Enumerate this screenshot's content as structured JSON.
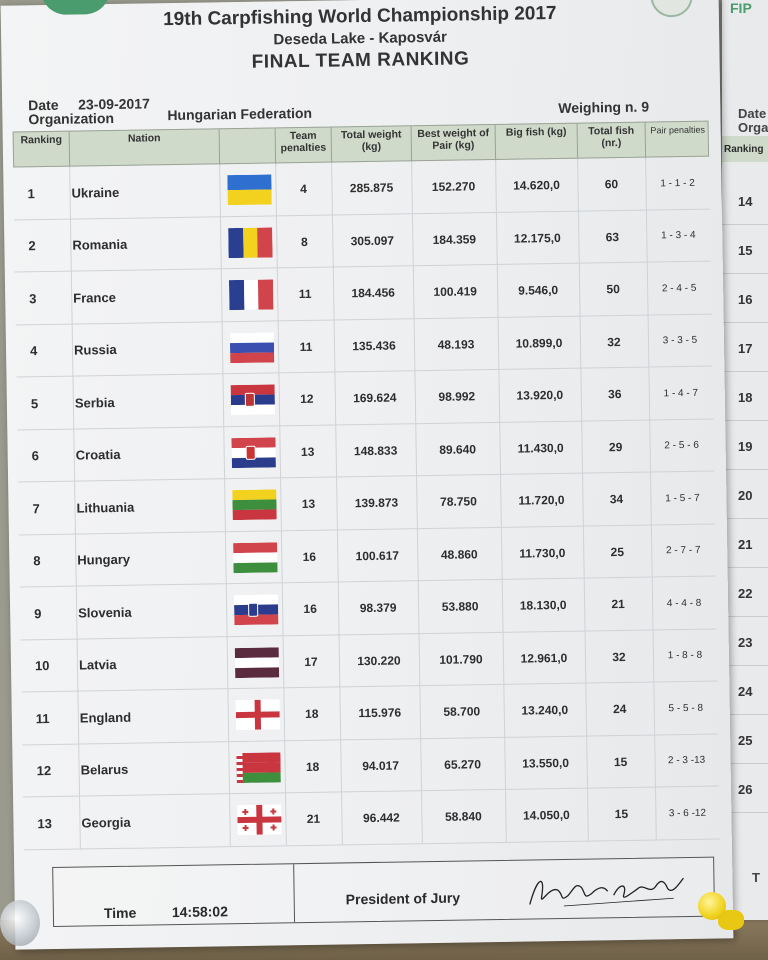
{
  "header": {
    "title": "19th Carpfishing World Championship 2017",
    "venue": "Deseda Lake - Kaposvár",
    "subtitle": "FINAL TEAM RANKING"
  },
  "meta": {
    "date_label": "Date",
    "date_value": "23-09-2017",
    "org_label": "Organization",
    "org_value": "Hungarian Federation",
    "weighing": "Weighing n. 9"
  },
  "columns": {
    "ranking": "Ranking",
    "nation": "Nation",
    "team_penalties": "Team penalties",
    "total_weight": "Total weight (kg)",
    "best_weight": "Best weight of Pair (kg)",
    "big_fish": "Big fish (kg)",
    "total_fish": "Total fish (nr.)",
    "pair_penalties": "Pair penalties"
  },
  "rows": [
    {
      "rank": "1",
      "nation": "Ukraine",
      "flag": "ukraine",
      "team_penalties": "4",
      "total_weight": "285.875",
      "best_weight": "152.270",
      "big_fish": "14.620,0",
      "total_fish": "60",
      "pair_penalties": "1 - 1 - 2"
    },
    {
      "rank": "2",
      "nation": "Romania",
      "flag": "romania",
      "team_penalties": "8",
      "total_weight": "305.097",
      "best_weight": "184.359",
      "big_fish": "12.175,0",
      "total_fish": "63",
      "pair_penalties": "1 - 3 - 4"
    },
    {
      "rank": "3",
      "nation": "France",
      "flag": "france",
      "team_penalties": "11",
      "total_weight": "184.456",
      "best_weight": "100.419",
      "big_fish": "9.546,0",
      "total_fish": "50",
      "pair_penalties": "2 - 4 - 5"
    },
    {
      "rank": "4",
      "nation": "Russia",
      "flag": "russia",
      "team_penalties": "11",
      "total_weight": "135.436",
      "best_weight": "48.193",
      "big_fish": "10.899,0",
      "total_fish": "32",
      "pair_penalties": "3 - 3 - 5"
    },
    {
      "rank": "5",
      "nation": "Serbia",
      "flag": "serbia",
      "team_penalties": "12",
      "total_weight": "169.624",
      "best_weight": "98.992",
      "big_fish": "13.920,0",
      "total_fish": "36",
      "pair_penalties": "1 - 4 - 7"
    },
    {
      "rank": "6",
      "nation": "Croatia",
      "flag": "croatia",
      "team_penalties": "13",
      "total_weight": "148.833",
      "best_weight": "89.640",
      "big_fish": "11.430,0",
      "total_fish": "29",
      "pair_penalties": "2 - 5 - 6"
    },
    {
      "rank": "7",
      "nation": "Lithuania",
      "flag": "lithuania",
      "team_penalties": "13",
      "total_weight": "139.873",
      "best_weight": "78.750",
      "big_fish": "11.720,0",
      "total_fish": "34",
      "pair_penalties": "1 - 5 - 7"
    },
    {
      "rank": "8",
      "nation": "Hungary",
      "flag": "hungary",
      "team_penalties": "16",
      "total_weight": "100.617",
      "best_weight": "48.860",
      "big_fish": "11.730,0",
      "total_fish": "25",
      "pair_penalties": "2 - 7 - 7"
    },
    {
      "rank": "9",
      "nation": "Slovenia",
      "flag": "slovenia",
      "team_penalties": "16",
      "total_weight": "98.379",
      "best_weight": "53.880",
      "big_fish": "18.130,0",
      "total_fish": "21",
      "pair_penalties": "4 - 4 - 8"
    },
    {
      "rank": "10",
      "nation": "Latvia",
      "flag": "latvia",
      "team_penalties": "17",
      "total_weight": "130.220",
      "best_weight": "101.790",
      "big_fish": "12.961,0",
      "total_fish": "32",
      "pair_penalties": "1 - 8 - 8"
    },
    {
      "rank": "11",
      "nation": "England",
      "flag": "england",
      "team_penalties": "18",
      "total_weight": "115.976",
      "best_weight": "58.700",
      "big_fish": "13.240,0",
      "total_fish": "24",
      "pair_penalties": "5 - 5 - 8"
    },
    {
      "rank": "12",
      "nation": "Belarus",
      "flag": "belarus",
      "team_penalties": "18",
      "total_weight": "94.017",
      "best_weight": "65.270",
      "big_fish": "13.550,0",
      "total_fish": "15",
      "pair_penalties": "2 - 3 -13"
    },
    {
      "rank": "13",
      "nation": "Georgia",
      "flag": "georgia",
      "team_penalties": "21",
      "total_weight": "96.442",
      "best_weight": "58.840",
      "big_fish": "14.050,0",
      "total_fish": "15",
      "pair_penalties": "3 - 6 -12"
    }
  ],
  "footer": {
    "time_label": "Time",
    "time_value": "14:58:02",
    "president_label": "President of Jury"
  },
  "next_sheet": {
    "label_top": "Date",
    "label_org": "Orga",
    "label_rank": "Ranking",
    "corner_label": "FIP",
    "footer_letter": "T",
    "ranks": [
      "14",
      "15",
      "16",
      "17",
      "18",
      "19",
      "20",
      "21",
      "22",
      "23",
      "24",
      "25",
      "26"
    ]
  },
  "colors": {
    "header_bg": "#cfdacb",
    "paper": "#eeeff1",
    "accent_green": "#4a9c6e"
  }
}
